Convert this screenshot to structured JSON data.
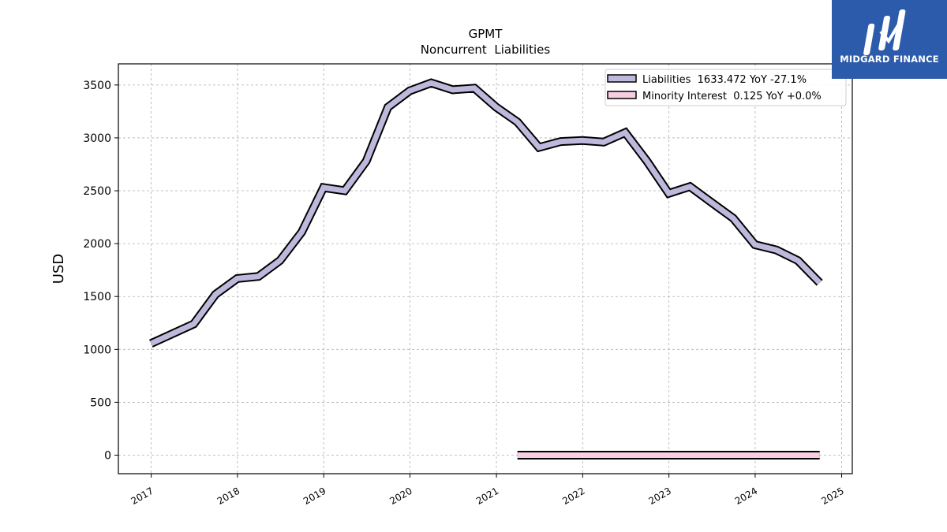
{
  "brand": {
    "name": "MIDGARD FINANCE",
    "bg_color": "#2d5bab"
  },
  "chart_data": {
    "type": "line",
    "title": "GPMT",
    "subtitle": "Noncurrent  Liabilities",
    "xlabel": "",
    "ylabel": "USD",
    "ylim": [
      -175,
      3700
    ],
    "yticks": [
      0,
      500,
      1000,
      1500,
      2000,
      2500,
      3000,
      3500
    ],
    "xlim": [
      "2016-08-15",
      "2025-02-15"
    ],
    "xticks": [
      "2017",
      "2018",
      "2019",
      "2020",
      "2021",
      "2022",
      "2023",
      "2024",
      "2025"
    ],
    "grid": true,
    "legend_position": "top-right",
    "series": [
      {
        "name": "Liabilities",
        "legend_label": "Liabilities  1633.472 YoY -27.1%",
        "color": "#bcb9dc",
        "x": [
          "2016-12-31",
          "2017-06-30",
          "2017-09-30",
          "2017-12-31",
          "2018-03-31",
          "2018-06-30",
          "2018-09-30",
          "2018-12-31",
          "2019-03-31",
          "2019-06-30",
          "2019-09-30",
          "2019-12-31",
          "2020-03-31",
          "2020-06-30",
          "2020-09-30",
          "2020-12-31",
          "2021-03-31",
          "2021-06-30",
          "2021-09-30",
          "2021-12-31",
          "2022-03-31",
          "2022-06-30",
          "2022-09-30",
          "2022-12-31",
          "2023-03-31",
          "2023-06-30",
          "2023-09-30",
          "2023-12-31",
          "2024-03-31",
          "2024-06-30",
          "2024-09-30"
        ],
        "values": [
          1055,
          1240,
          1520,
          1670,
          1690,
          1840,
          2110,
          2530,
          2500,
          2780,
          3290,
          3445,
          3520,
          3455,
          3470,
          3290,
          3150,
          2910,
          2965,
          2975,
          2960,
          3050,
          2780,
          2475,
          2540,
          2390,
          2240,
          1990,
          1940,
          1840,
          1630
        ]
      },
      {
        "name": "Minority Interest",
        "legend_label": "Minority Interest  0.125 YoY +0.0%",
        "color": "#f7cde2",
        "x": [
          "2021-03-31",
          "2024-09-30"
        ],
        "values": [
          0.125,
          0.125
        ]
      }
    ]
  }
}
